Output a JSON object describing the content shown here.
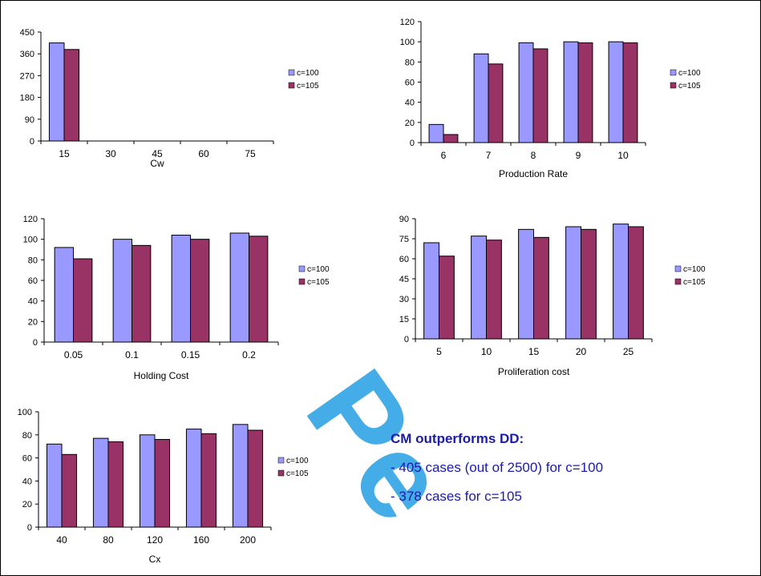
{
  "watermark": "Pe",
  "colors": {
    "c100": "#9999ff",
    "c105": "#993366"
  },
  "summary": {
    "heading": "CM outperforms DD:",
    "lines": [
      "- 405 cases (out of 2500) for c=100",
      "- 378 cases for c=105"
    ]
  },
  "chart_data": [
    {
      "type": "bar",
      "xlabel": "Cw",
      "categories": [
        "15",
        "30",
        "45",
        "60",
        "75"
      ],
      "ylim": [
        0,
        450
      ],
      "yticks": [
        0,
        90,
        180,
        270,
        360,
        450
      ],
      "series": [
        {
          "name": "c=100",
          "values": [
            405,
            0,
            0,
            0,
            0
          ]
        },
        {
          "name": "c=105",
          "values": [
            378,
            0,
            0,
            0,
            0
          ]
        }
      ],
      "legend": "right"
    },
    {
      "type": "bar",
      "xlabel": "Production Rate",
      "categories": [
        "6",
        "7",
        "8",
        "9",
        "10"
      ],
      "ylim": [
        0,
        120
      ],
      "yticks": [
        0,
        20,
        40,
        60,
        80,
        100,
        120
      ],
      "series": [
        {
          "name": "c=100",
          "values": [
            18,
            88,
            99,
            100,
            100
          ]
        },
        {
          "name": "c=105",
          "values": [
            8,
            78,
            93,
            99,
            99
          ]
        }
      ],
      "legend": "right"
    },
    {
      "type": "bar",
      "xlabel": "Holding Cost",
      "categories": [
        "0.05",
        "0.1",
        "0.15",
        "0.2"
      ],
      "ylim": [
        0,
        120
      ],
      "yticks": [
        0,
        20,
        40,
        60,
        80,
        100,
        120
      ],
      "series": [
        {
          "name": "c=100",
          "values": [
            92,
            100,
            104,
            106
          ]
        },
        {
          "name": "c=105",
          "values": [
            81,
            94,
            100,
            103
          ]
        }
      ],
      "legend": "right"
    },
    {
      "type": "bar",
      "xlabel": "Proliferation cost",
      "categories": [
        "5",
        "10",
        "15",
        "20",
        "25"
      ],
      "ylim": [
        0,
        90
      ],
      "yticks": [
        0,
        15,
        30,
        45,
        60,
        75,
        90
      ],
      "series": [
        {
          "name": "c=100",
          "values": [
            72,
            77,
            82,
            84,
            86
          ]
        },
        {
          "name": "c=105",
          "values": [
            62,
            74,
            76,
            82,
            84
          ]
        }
      ],
      "legend": "right"
    },
    {
      "type": "bar",
      "xlabel": "Cx",
      "categories": [
        "40",
        "80",
        "120",
        "160",
        "200"
      ],
      "ylim": [
        0,
        100
      ],
      "yticks": [
        0,
        20,
        40,
        60,
        80,
        100
      ],
      "series": [
        {
          "name": "c=100",
          "values": [
            72,
            77,
            80,
            85,
            89
          ]
        },
        {
          "name": "c=105",
          "values": [
            63,
            74,
            76,
            81,
            84
          ]
        }
      ],
      "legend": "right"
    }
  ]
}
